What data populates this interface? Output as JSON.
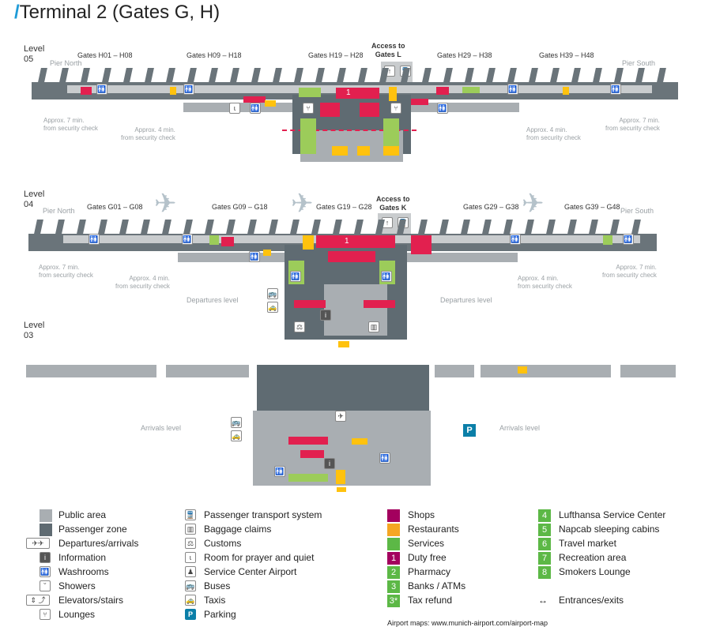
{
  "title": {
    "slash": "/",
    "text": "Terminal 2 (Gates G, H)"
  },
  "colors": {
    "accent": "#1e9bd7",
    "public_area": "#a9aeb2",
    "passenger_zone": "#5f6b72",
    "shops": "#a3005e",
    "restaurants": "#f5a623",
    "services": "#5cb846",
    "map_shops": "#e2204f",
    "map_restaurants": "#ffc20e",
    "parking": "#0b7fa8"
  },
  "level05": {
    "label": "Level\n05",
    "pier_north": "Pier North",
    "pier_south": "Pier South",
    "gates": [
      "Gates H01 – H08",
      "Gates H09 – H18",
      "Gates H19 – H28",
      "Gates H29 – H38",
      "Gates H39 – H48"
    ],
    "access": "Access to\nGates L",
    "walk_left_7": "Approx. 7 min.\nfrom security check",
    "walk_left_4": "Approx. 4 min.\nfrom security check",
    "walk_right_4": "Approx. 4 min.\nfrom security check",
    "walk_right_7": "Approx. 7 min.\nfrom security check"
  },
  "level04": {
    "label": "Level\n04",
    "pier_north": "Pier North",
    "pier_south": "Pier South",
    "gates": [
      "Gates G01 – G08",
      "Gates G09 – G18",
      "Gates G19 – G28",
      "Gates G29 – G38",
      "Gates G39 – G48"
    ],
    "access": "Access to\nGates K",
    "walk_left_7": "Approx. 7 min.\nfrom security check",
    "walk_left_4": "Approx. 4 min.\nfrom security check",
    "walk_right_4": "Approx. 4 min.\nfrom security check",
    "walk_right_7": "Approx. 7 min.\nfrom security check",
    "departures_left": "Departures level",
    "departures_right": "Departures level"
  },
  "level03": {
    "label": "Level\n03",
    "arrivals_left": "Arrivals level",
    "arrivals_right": "Arrivals level",
    "parking": "P"
  },
  "legend": {
    "col1": [
      {
        "icon": "public-area",
        "label": "Public area"
      },
      {
        "icon": "passenger-zone",
        "label": "Passenger zone"
      },
      {
        "icon": "plane-icons",
        "label": "Departures/arrivals"
      },
      {
        "icon": "info",
        "label": "Information"
      },
      {
        "icon": "washroom",
        "label": "Washrooms"
      },
      {
        "icon": "shower",
        "label": "Showers"
      },
      {
        "icon": "elevator-stairs",
        "label": "Elevators/stairs"
      },
      {
        "icon": "lounge",
        "label": "Lounges"
      }
    ],
    "col2": [
      {
        "icon": "train",
        "label": "Passenger transport system"
      },
      {
        "icon": "baggage",
        "label": "Baggage claims"
      },
      {
        "icon": "customs",
        "label": "Customs"
      },
      {
        "icon": "prayer",
        "label": "Room for prayer and quiet"
      },
      {
        "icon": "service-center",
        "label": "Service Center Airport"
      },
      {
        "icon": "bus",
        "label": "Buses"
      },
      {
        "icon": "taxi",
        "label": "Taxis"
      },
      {
        "icon": "parking",
        "label": "Parking",
        "glyph": "P"
      }
    ],
    "col3": [
      {
        "label": "Shops"
      },
      {
        "label": "Restaurants"
      },
      {
        "label": "Services"
      },
      {
        "num": "1",
        "label": "Duty free"
      },
      {
        "num": "2",
        "label": "Pharmacy"
      },
      {
        "num": "3",
        "label": "Banks / ATMs"
      },
      {
        "num": "3*",
        "label": "Tax refund"
      }
    ],
    "col4": [
      {
        "num": "4",
        "label": "Lufthansa Service Center"
      },
      {
        "num": "5",
        "label": "Napcab sleeping cabins"
      },
      {
        "num": "6",
        "label": "Travel market"
      },
      {
        "num": "7",
        "label": "Recreation area"
      },
      {
        "num": "8",
        "label": "Smokers Lounge"
      },
      {
        "glyph": "↔",
        "label": "Entrances/exits"
      }
    ],
    "footer": "Airport maps: www.munich-airport.com/airport-map"
  }
}
